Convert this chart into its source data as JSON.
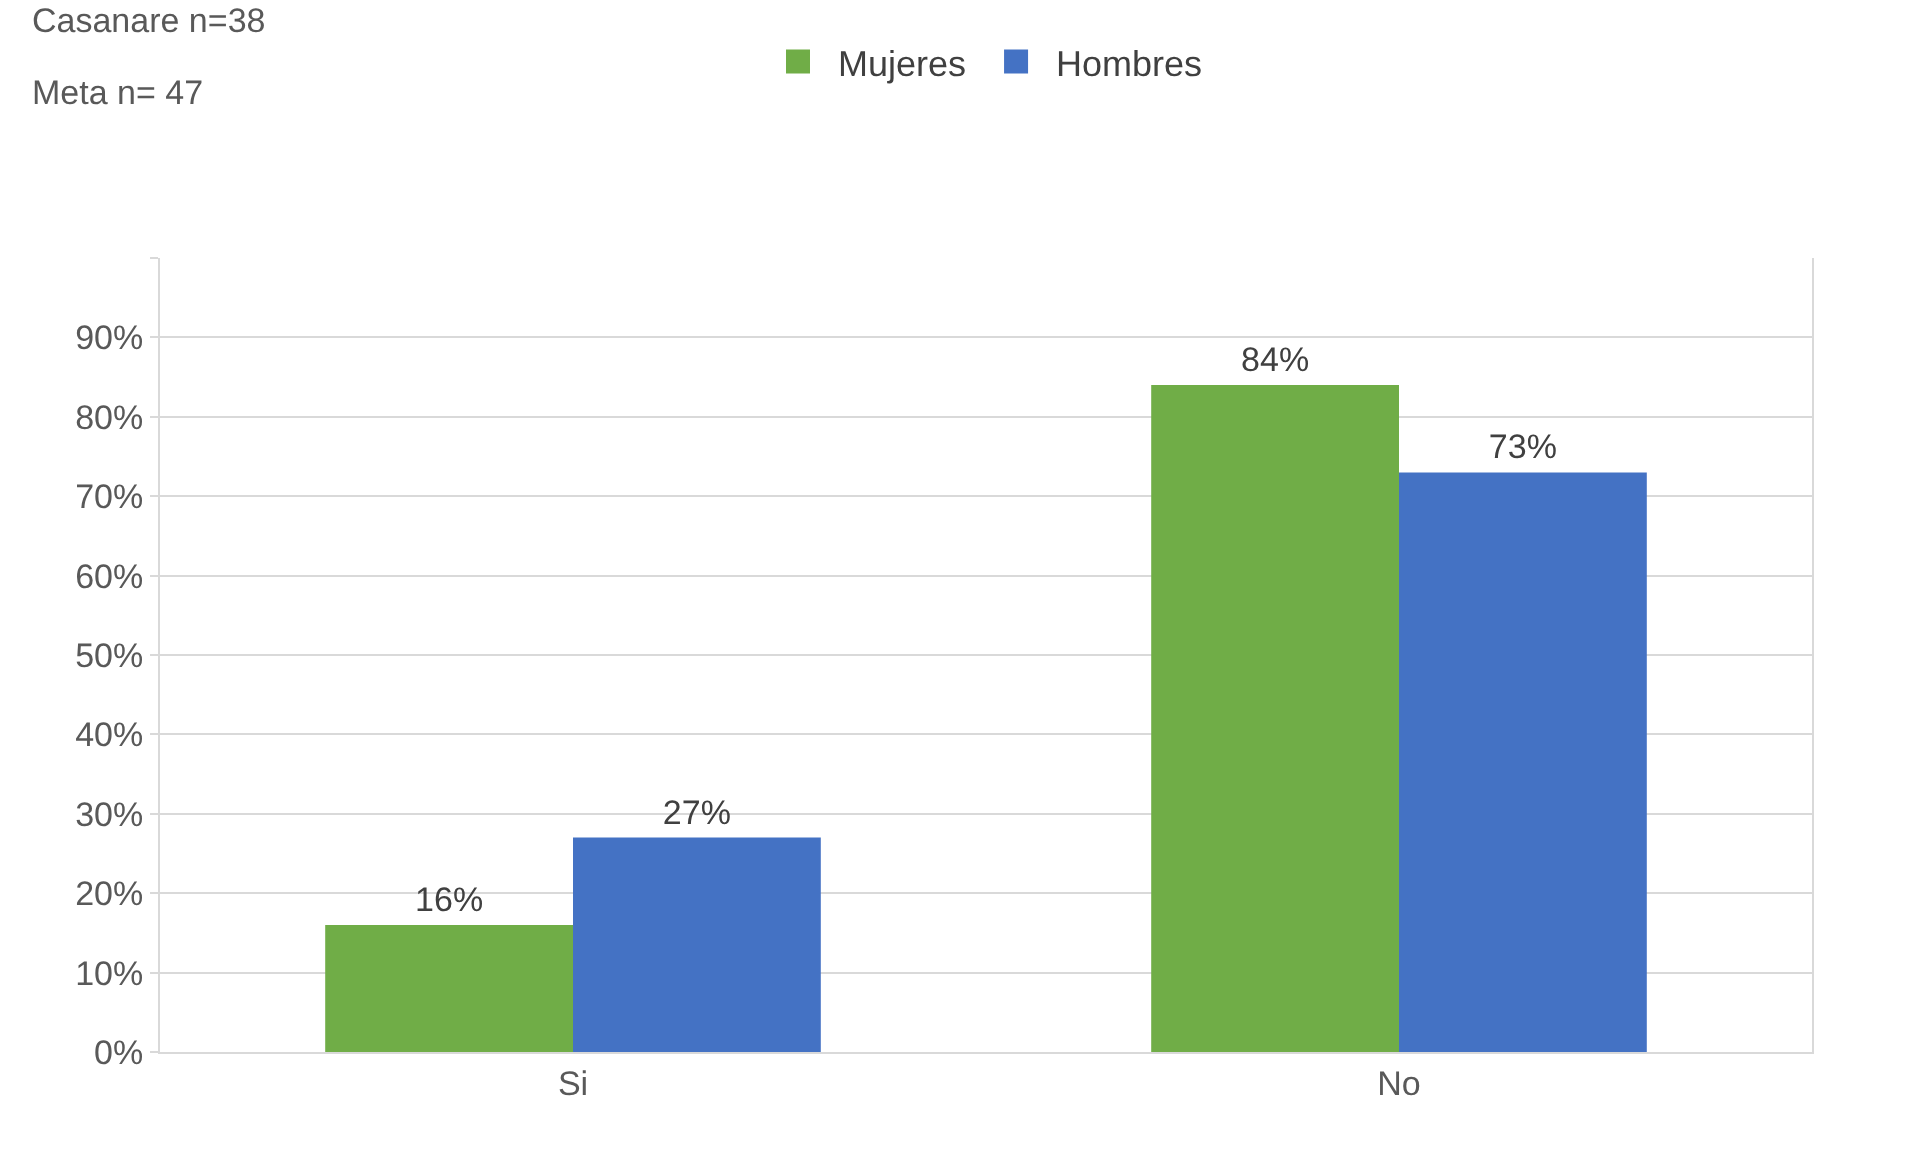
{
  "chart_data": {
    "type": "bar",
    "categories": [
      "Si",
      "No"
    ],
    "series": [
      {
        "name": "Mujeres",
        "color": "#70ad47",
        "values": [
          16,
          84
        ],
        "value_labels": [
          "16%",
          "84%"
        ]
      },
      {
        "name": "Hombres",
        "color": "#4472c4",
        "values": [
          27,
          73
        ],
        "value_labels": [
          "27%",
          "73%"
        ]
      }
    ],
    "ylim": [
      0,
      100
    ],
    "yticks": [
      {
        "value": 0,
        "label": "0%"
      },
      {
        "value": 10,
        "label": "10%"
      },
      {
        "value": 20,
        "label": "20%"
      },
      {
        "value": 30,
        "label": "30%"
      },
      {
        "value": 40,
        "label": "40%"
      },
      {
        "value": 50,
        "label": "50%"
      },
      {
        "value": 60,
        "label": "60%"
      },
      {
        "value": 70,
        "label": "70%"
      },
      {
        "value": 80,
        "label": "80%"
      },
      {
        "value": 90,
        "label": "90%"
      },
      {
        "value": 100,
        "label": null
      }
    ],
    "annotations": [
      "Casanare n=38",
      "Meta n= 47"
    ],
    "grid": "y",
    "legend": "top"
  }
}
